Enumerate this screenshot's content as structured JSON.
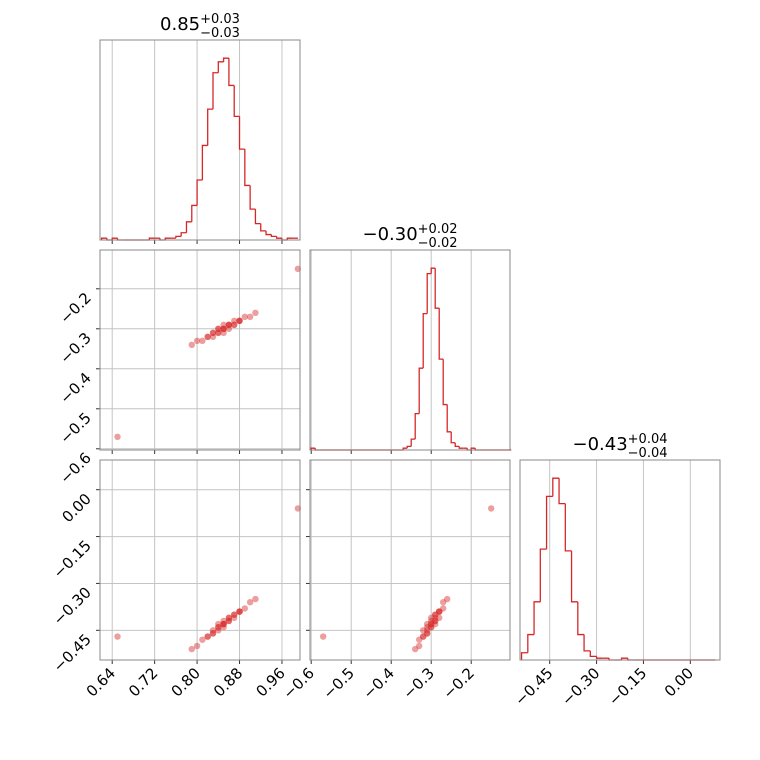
{
  "chart_data": {
    "type": "corner",
    "color": "#d62728",
    "grid": true,
    "params": [
      {
        "title": "0.85",
        "title_sup": "+0.03",
        "title_sub": "−0.03",
        "lim": [
          0.617,
          0.994
        ],
        "ticks": [
          0.64,
          0.72,
          {
            "value": 0.8,
            "label": "0.80"
          },
          0.88,
          0.96
        ],
        "bins": [
          0.62,
          0.63,
          0.64,
          0.65,
          0.66,
          0.67,
          0.68,
          0.69,
          0.7,
          0.71,
          0.72,
          0.73,
          0.74,
          0.75,
          0.76,
          0.77,
          0.78,
          0.79,
          0.8,
          0.81,
          0.82,
          0.83,
          0.84,
          0.85,
          0.86,
          0.87,
          0.88,
          0.89,
          0.9,
          0.91,
          0.92,
          0.93,
          0.94,
          0.95,
          0.96,
          0.97,
          0.98,
          0.99
        ],
        "counts": [
          1,
          0,
          1,
          0,
          0,
          0,
          0,
          0,
          0,
          1,
          1,
          0,
          1,
          1,
          2,
          4,
          10,
          19,
          33,
          52,
          72,
          92,
          98,
          100,
          85,
          68,
          50,
          30,
          17,
          9,
          5,
          3,
          2,
          1,
          0,
          1,
          1
        ],
        "count_lim": [
          0,
          110
        ],
        "samples": [
          0.85,
          0.82,
          0.88,
          0.86,
          0.84,
          0.83,
          0.87,
          0.89,
          0.81,
          0.85,
          0.86,
          0.84,
          0.9,
          0.8,
          0.85,
          0.83,
          0.87,
          0.88,
          0.82,
          0.86,
          0.84,
          0.85,
          0.91,
          0.79,
          0.86,
          0.83,
          0.87,
          0.85,
          0.84,
          0.88,
          0.65,
          0.99
        ]
      },
      {
        "title": "−0.30",
        "title_sup": "+0.02",
        "title_sub": "−0.02",
        "lim": [
          -0.603,
          -0.103
        ],
        "ticks": [
          {
            "value": -0.6,
            "label": "−0.6"
          },
          {
            "value": -0.5,
            "label": "−0.5"
          },
          {
            "value": -0.4,
            "label": "−0.4"
          },
          {
            "value": -0.3,
            "label": "−0.3"
          },
          {
            "value": -0.2,
            "label": "−0.2"
          }
        ],
        "bins": [
          -0.6,
          -0.59,
          -0.58,
          -0.57,
          -0.56,
          -0.55,
          -0.54,
          -0.53,
          -0.52,
          -0.51,
          -0.5,
          -0.49,
          -0.48,
          -0.47,
          -0.46,
          -0.45,
          -0.44,
          -0.43,
          -0.42,
          -0.41,
          -0.4,
          -0.39,
          -0.38,
          -0.37,
          -0.36,
          -0.35,
          -0.34,
          -0.33,
          -0.32,
          -0.31,
          -0.3,
          -0.29,
          -0.28,
          -0.27,
          -0.26,
          -0.25,
          -0.24,
          -0.23,
          -0.22,
          -0.21,
          -0.2,
          -0.19,
          -0.18,
          -0.17,
          -0.16,
          -0.15,
          -0.14,
          -0.13,
          -0.12,
          -0.11,
          -0.1
        ],
        "counts": [
          1,
          0,
          0,
          0,
          0,
          0,
          0,
          0,
          0,
          0,
          0,
          0,
          0,
          0,
          0,
          0,
          0,
          0,
          0,
          0,
          0,
          0,
          0,
          1,
          2,
          6,
          20,
          45,
          75,
          97,
          100,
          78,
          50,
          25,
          10,
          4,
          2,
          1,
          1,
          0,
          1,
          0,
          0,
          0,
          0,
          0,
          0,
          0,
          0,
          0
        ],
        "count_lim": [
          0,
          110
        ],
        "samples": [
          -0.3,
          -0.32,
          -0.28,
          -0.29,
          -0.31,
          -0.31,
          -0.29,
          -0.27,
          -0.33,
          -0.3,
          -0.3,
          -0.31,
          -0.27,
          -0.33,
          -0.29,
          -0.32,
          -0.28,
          -0.28,
          -0.32,
          -0.29,
          -0.3,
          -0.31,
          -0.26,
          -0.34,
          -0.29,
          -0.31,
          -0.29,
          -0.3,
          -0.3,
          -0.28,
          -0.57,
          -0.15
        ]
      },
      {
        "title": "−0.43",
        "title_sup": "+0.04",
        "title_sub": "−0.04",
        "lim": [
          -0.545,
          0.095
        ],
        "ticks": [
          {
            "value": -0.45,
            "label": "−0.45"
          },
          {
            "value": -0.3,
            "label": "−0.30"
          },
          {
            "value": -0.15,
            "label": "−0.15"
          },
          {
            "value": 0,
            "label": "0.00"
          }
        ],
        "bins": [
          -0.54,
          -0.52,
          -0.5,
          -0.48,
          -0.46,
          -0.44,
          -0.42,
          -0.4,
          -0.38,
          -0.36,
          -0.34,
          -0.32,
          -0.3,
          -0.28,
          -0.26,
          -0.24,
          -0.22,
          -0.2,
          -0.18,
          -0.16,
          -0.14,
          -0.12,
          -0.1,
          -0.08,
          -0.06,
          -0.04,
          -0.02,
          0,
          0.02,
          0.04,
          0.06,
          0.08
        ],
        "counts": [
          4,
          14,
          32,
          61,
          90,
          100,
          86,
          60,
          32,
          14,
          5,
          2,
          1,
          1,
          0,
          0,
          1,
          0,
          0,
          0,
          0,
          0,
          0,
          0,
          0,
          0,
          0,
          0,
          0,
          0,
          0
        ],
        "count_lim": [
          0,
          110
        ],
        "samples": [
          -0.43,
          -0.47,
          -0.39,
          -0.42,
          -0.44,
          -0.46,
          -0.4,
          -0.38,
          -0.48,
          -0.42,
          -0.41,
          -0.45,
          -0.36,
          -0.5,
          -0.43,
          -0.45,
          -0.41,
          -0.39,
          -0.47,
          -0.42,
          -0.44,
          -0.43,
          -0.35,
          -0.51,
          -0.41,
          -0.46,
          -0.4,
          -0.44,
          -0.43,
          -0.39,
          -0.47,
          -0.06
        ]
      }
    ]
  }
}
